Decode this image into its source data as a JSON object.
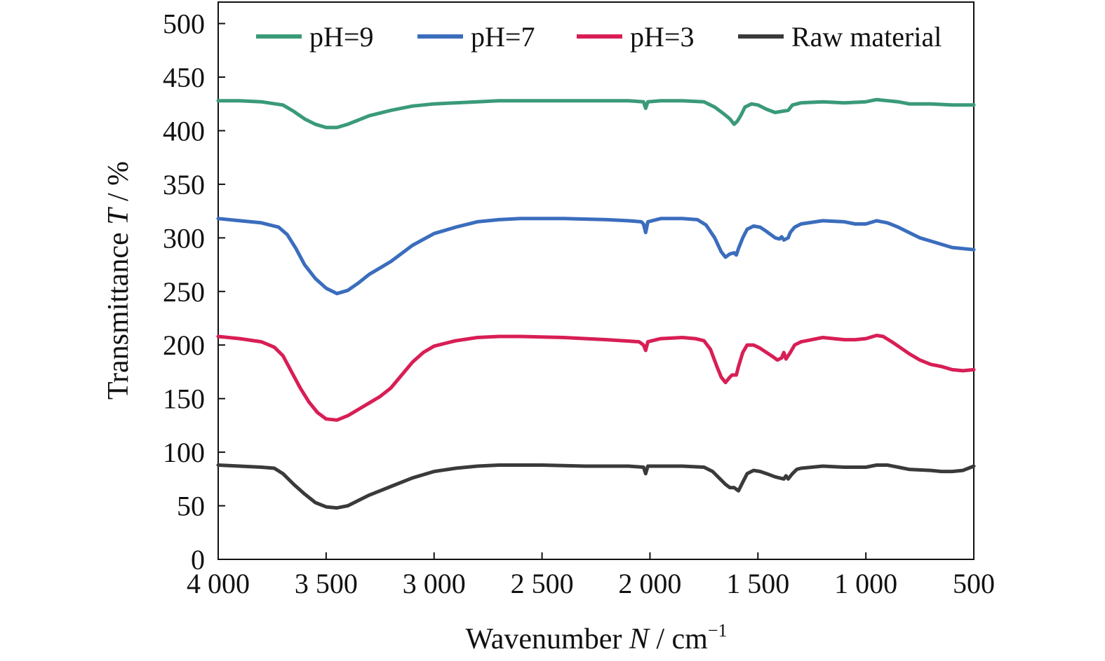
{
  "chart_data": {
    "type": "line",
    "title": "",
    "xlabel": {
      "prefix": "Wavenumber ",
      "symbol": "N",
      "suffix": " / cm",
      "sup": "−1"
    },
    "ylabel": {
      "prefix": "Transmittance ",
      "symbol": "T",
      "suffix": " / %"
    },
    "xlim": [
      4000,
      500
    ],
    "ylim": [
      0,
      520
    ],
    "xticks": [
      4000,
      3500,
      3000,
      2500,
      2000,
      1500,
      1000,
      500
    ],
    "xtick_labels": [
      "4 000",
      "3 500",
      "3 000",
      "2 500",
      "2 000",
      "1 500",
      "1 000",
      "500"
    ],
    "yticks": [
      0,
      50,
      100,
      150,
      200,
      250,
      300,
      350,
      400,
      450,
      500
    ],
    "ytick_labels": [
      "0",
      "50",
      "100",
      "150",
      "200",
      "250",
      "300",
      "350",
      "400",
      "450",
      "500"
    ],
    "grid": false,
    "legend_position": "top",
    "series": [
      {
        "name": "pH=9",
        "color": "#3a9a78",
        "points": [
          [
            4000,
            428
          ],
          [
            3900,
            428
          ],
          [
            3800,
            427
          ],
          [
            3700,
            424
          ],
          [
            3650,
            418
          ],
          [
            3600,
            411
          ],
          [
            3550,
            406
          ],
          [
            3500,
            403
          ],
          [
            3450,
            403
          ],
          [
            3400,
            406
          ],
          [
            3350,
            410
          ],
          [
            3300,
            414
          ],
          [
            3200,
            419
          ],
          [
            3100,
            423
          ],
          [
            3000,
            425
          ],
          [
            2900,
            426
          ],
          [
            2800,
            427
          ],
          [
            2700,
            428
          ],
          [
            2500,
            428
          ],
          [
            2300,
            428
          ],
          [
            2100,
            428
          ],
          [
            2030,
            427
          ],
          [
            2020,
            421
          ],
          [
            2010,
            427
          ],
          [
            1950,
            428
          ],
          [
            1850,
            428
          ],
          [
            1750,
            427
          ],
          [
            1700,
            422
          ],
          [
            1660,
            416
          ],
          [
            1630,
            411
          ],
          [
            1610,
            406
          ],
          [
            1595,
            409
          ],
          [
            1580,
            414
          ],
          [
            1560,
            422
          ],
          [
            1530,
            425
          ],
          [
            1500,
            424
          ],
          [
            1460,
            420
          ],
          [
            1420,
            417
          ],
          [
            1390,
            418
          ],
          [
            1360,
            419
          ],
          [
            1340,
            424
          ],
          [
            1300,
            426
          ],
          [
            1200,
            427
          ],
          [
            1100,
            426
          ],
          [
            1000,
            427
          ],
          [
            950,
            429
          ],
          [
            900,
            428
          ],
          [
            850,
            427
          ],
          [
            800,
            425
          ],
          [
            700,
            425
          ],
          [
            600,
            424
          ],
          [
            500,
            424
          ]
        ]
      },
      {
        "name": "pH=7",
        "color": "#3b6dbd",
        "points": [
          [
            4000,
            318
          ],
          [
            3900,
            316
          ],
          [
            3800,
            314
          ],
          [
            3720,
            310
          ],
          [
            3680,
            303
          ],
          [
            3640,
            290
          ],
          [
            3600,
            275
          ],
          [
            3550,
            262
          ],
          [
            3500,
            253
          ],
          [
            3450,
            248
          ],
          [
            3400,
            251
          ],
          [
            3350,
            258
          ],
          [
            3300,
            266
          ],
          [
            3250,
            272
          ],
          [
            3200,
            278
          ],
          [
            3100,
            293
          ],
          [
            3000,
            304
          ],
          [
            2900,
            310
          ],
          [
            2800,
            315
          ],
          [
            2700,
            317
          ],
          [
            2600,
            318
          ],
          [
            2400,
            318
          ],
          [
            2200,
            317
          ],
          [
            2100,
            316
          ],
          [
            2040,
            315
          ],
          [
            2030,
            313
          ],
          [
            2020,
            305
          ],
          [
            2010,
            315
          ],
          [
            1950,
            318
          ],
          [
            1850,
            318
          ],
          [
            1780,
            317
          ],
          [
            1740,
            312
          ],
          [
            1700,
            300
          ],
          [
            1670,
            287
          ],
          [
            1650,
            282
          ],
          [
            1630,
            285
          ],
          [
            1610,
            286
          ],
          [
            1600,
            284
          ],
          [
            1590,
            290
          ],
          [
            1570,
            300
          ],
          [
            1550,
            308
          ],
          [
            1520,
            311
          ],
          [
            1490,
            310
          ],
          [
            1460,
            306
          ],
          [
            1420,
            300
          ],
          [
            1400,
            299
          ],
          [
            1390,
            301
          ],
          [
            1380,
            298
          ],
          [
            1360,
            300
          ],
          [
            1350,
            305
          ],
          [
            1330,
            310
          ],
          [
            1300,
            313
          ],
          [
            1200,
            316
          ],
          [
            1100,
            315
          ],
          [
            1050,
            313
          ],
          [
            1000,
            313
          ],
          [
            950,
            316
          ],
          [
            900,
            314
          ],
          [
            850,
            310
          ],
          [
            800,
            305
          ],
          [
            750,
            300
          ],
          [
            700,
            297
          ],
          [
            650,
            294
          ],
          [
            600,
            291
          ],
          [
            500,
            289
          ]
        ]
      },
      {
        "name": "pH=3",
        "color": "#d81e55",
        "points": [
          [
            4000,
            208
          ],
          [
            3900,
            206
          ],
          [
            3800,
            203
          ],
          [
            3740,
            198
          ],
          [
            3700,
            190
          ],
          [
            3660,
            175
          ],
          [
            3620,
            160
          ],
          [
            3580,
            147
          ],
          [
            3540,
            137
          ],
          [
            3500,
            131
          ],
          [
            3450,
            130
          ],
          [
            3400,
            134
          ],
          [
            3350,
            140
          ],
          [
            3300,
            146
          ],
          [
            3250,
            152
          ],
          [
            3200,
            160
          ],
          [
            3150,
            172
          ],
          [
            3100,
            184
          ],
          [
            3050,
            193
          ],
          [
            3000,
            199
          ],
          [
            2900,
            204
          ],
          [
            2800,
            207
          ],
          [
            2700,
            208
          ],
          [
            2600,
            208
          ],
          [
            2400,
            207
          ],
          [
            2200,
            205
          ],
          [
            2050,
            203
          ],
          [
            2030,
            200
          ],
          [
            2020,
            195
          ],
          [
            2010,
            203
          ],
          [
            1950,
            206
          ],
          [
            1850,
            207
          ],
          [
            1790,
            206
          ],
          [
            1750,
            204
          ],
          [
            1720,
            196
          ],
          [
            1690,
            180
          ],
          [
            1670,
            170
          ],
          [
            1650,
            165
          ],
          [
            1630,
            170
          ],
          [
            1620,
            172
          ],
          [
            1600,
            172
          ],
          [
            1590,
            180
          ],
          [
            1570,
            193
          ],
          [
            1550,
            200
          ],
          [
            1520,
            200
          ],
          [
            1490,
            197
          ],
          [
            1460,
            193
          ],
          [
            1430,
            189
          ],
          [
            1410,
            186
          ],
          [
            1390,
            188
          ],
          [
            1380,
            193
          ],
          [
            1370,
            187
          ],
          [
            1350,
            193
          ],
          [
            1330,
            200
          ],
          [
            1300,
            203
          ],
          [
            1200,
            207
          ],
          [
            1100,
            205
          ],
          [
            1050,
            205
          ],
          [
            1000,
            206
          ],
          [
            950,
            209
          ],
          [
            920,
            208
          ],
          [
            880,
            203
          ],
          [
            850,
            199
          ],
          [
            800,
            192
          ],
          [
            750,
            186
          ],
          [
            700,
            182
          ],
          [
            650,
            180
          ],
          [
            600,
            177
          ],
          [
            550,
            176
          ],
          [
            500,
            177
          ]
        ]
      },
      {
        "name": "Raw material",
        "color": "#3a3a3a",
        "points": [
          [
            4000,
            88
          ],
          [
            3900,
            87
          ],
          [
            3800,
            86
          ],
          [
            3740,
            85
          ],
          [
            3700,
            80
          ],
          [
            3650,
            70
          ],
          [
            3600,
            61
          ],
          [
            3550,
            53
          ],
          [
            3500,
            49
          ],
          [
            3450,
            48
          ],
          [
            3400,
            50
          ],
          [
            3350,
            55
          ],
          [
            3300,
            60
          ],
          [
            3250,
            64
          ],
          [
            3200,
            68
          ],
          [
            3100,
            76
          ],
          [
            3000,
            82
          ],
          [
            2900,
            85
          ],
          [
            2800,
            87
          ],
          [
            2700,
            88
          ],
          [
            2500,
            88
          ],
          [
            2300,
            87
          ],
          [
            2100,
            87
          ],
          [
            2030,
            86
          ],
          [
            2020,
            80
          ],
          [
            2010,
            87
          ],
          [
            1950,
            87
          ],
          [
            1850,
            87
          ],
          [
            1750,
            86
          ],
          [
            1710,
            82
          ],
          [
            1680,
            76
          ],
          [
            1650,
            70
          ],
          [
            1630,
            67
          ],
          [
            1610,
            67
          ],
          [
            1590,
            64
          ],
          [
            1570,
            72
          ],
          [
            1550,
            80
          ],
          [
            1520,
            83
          ],
          [
            1490,
            82
          ],
          [
            1460,
            80
          ],
          [
            1420,
            77
          ],
          [
            1400,
            76
          ],
          [
            1380,
            75
          ],
          [
            1370,
            78
          ],
          [
            1360,
            75
          ],
          [
            1340,
            80
          ],
          [
            1320,
            84
          ],
          [
            1300,
            85
          ],
          [
            1200,
            87
          ],
          [
            1100,
            86
          ],
          [
            1000,
            86
          ],
          [
            950,
            88
          ],
          [
            900,
            88
          ],
          [
            850,
            86
          ],
          [
            800,
            84
          ],
          [
            700,
            83
          ],
          [
            650,
            82
          ],
          [
            600,
            82
          ],
          [
            550,
            83
          ],
          [
            500,
            87
          ]
        ]
      }
    ]
  }
}
